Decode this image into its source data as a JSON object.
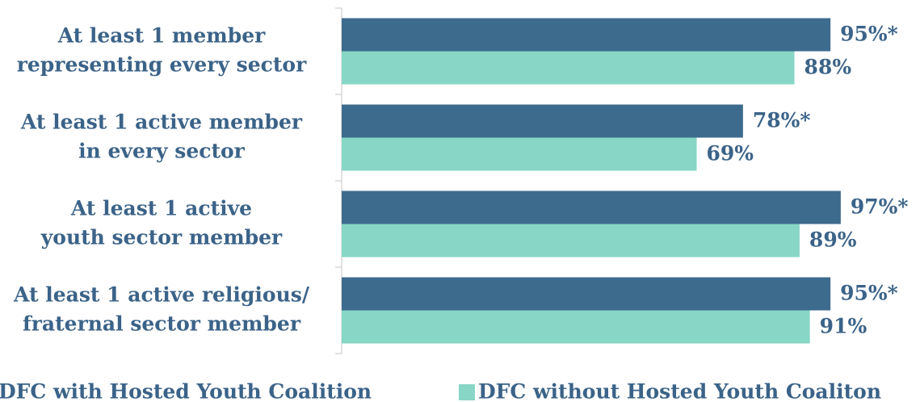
{
  "chart_data": {
    "type": "hbar",
    "categories": [
      "At least 1 member\nrepresenting every sector",
      "At least 1 active member\nin every sector",
      "At least 1 active\nyouth sector member",
      "At least 1 active religious/\nfraternal sector member"
    ],
    "series": [
      {
        "name": "DFC with Hosted Youth Coalition",
        "color": "#3d6b8e",
        "values": [
          95,
          78,
          97,
          95
        ],
        "value_labels": [
          "95%*",
          "78%*",
          "97%*",
          "95%*"
        ]
      },
      {
        "name": "DFC without Hosted Youth Coaliton",
        "color": "#88d6c6",
        "values": [
          88,
          69,
          89,
          91
        ],
        "value_labels": [
          "88%",
          "69%",
          "89%",
          "91%"
        ]
      }
    ],
    "xlim": [
      0,
      100
    ],
    "legend": "bottom"
  }
}
